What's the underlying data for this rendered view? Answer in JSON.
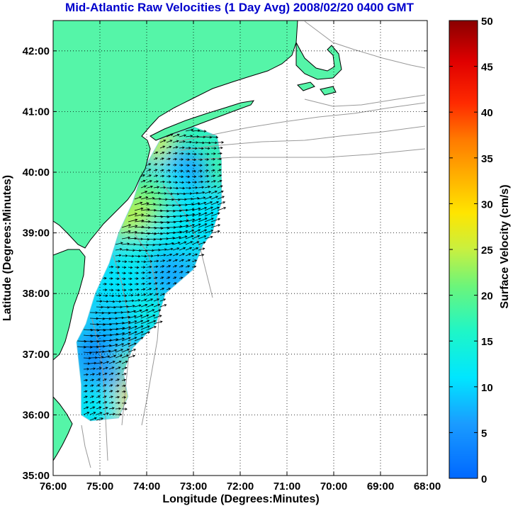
{
  "title": "Mid-Atlantic Raw Velocities (1 Day Avg) 2008/02/20 0400 GMT",
  "colors": {
    "title": "#0000cc",
    "land": "#55f5a8",
    "coast_line": "#000000",
    "bathymetry": "#999999",
    "grid": "#000000",
    "arrows": "#000000",
    "background": "#ffffff"
  },
  "map": {
    "xlabel": "Longitude (Degrees:Minutes)",
    "ylabel": "Latitude (Degrees:Minutes)",
    "lon_range": [
      -76,
      -68
    ],
    "lat_range": [
      35,
      42.5
    ],
    "x_ticks": [
      {
        "value": -76,
        "label": "76:00"
      },
      {
        "value": -75,
        "label": "75:00"
      },
      {
        "value": -74,
        "label": "74:00"
      },
      {
        "value": -73,
        "label": "73:00"
      },
      {
        "value": -72,
        "label": "72:00"
      },
      {
        "value": -71,
        "label": "71:00"
      },
      {
        "value": -70,
        "label": "70:00"
      },
      {
        "value": -69,
        "label": "69:00"
      },
      {
        "value": -68,
        "label": "68:00"
      }
    ],
    "y_ticks": [
      {
        "value": 35,
        "label": "35:00"
      },
      {
        "value": 36,
        "label": "36:00"
      },
      {
        "value": 37,
        "label": "37:00"
      },
      {
        "value": 38,
        "label": "38:00"
      },
      {
        "value": 39,
        "label": "39:00"
      },
      {
        "value": 40,
        "label": "40:00"
      },
      {
        "value": 41,
        "label": "41:00"
      },
      {
        "value": 42,
        "label": "42:00"
      }
    ],
    "grid": "dotted"
  },
  "colorbar": {
    "label": "Surface Velocity (cm/s)",
    "range": [
      0,
      50
    ],
    "ticks": [
      "0",
      "5",
      "10",
      "15",
      "20",
      "25",
      "30",
      "35",
      "40",
      "45",
      "50"
    ]
  },
  "chart_data": {
    "type": "heatmap",
    "title": "Mid-Atlantic Raw Velocities (1 Day Avg) 2008/02/20 0400 GMT",
    "xlabel": "Longitude (Degrees:Minutes)",
    "ylabel": "Latitude (Degrees:Minutes)",
    "xlim": [
      -76,
      -68
    ],
    "ylim": [
      35,
      42.5
    ],
    "value_label": "Surface Velocity (cm/s)",
    "value_range": [
      0,
      50
    ],
    "coverage_polygon_lon_lat": [
      [
        -73.7,
        40.55
      ],
      [
        -73.0,
        40.75
      ],
      [
        -72.5,
        40.6
      ],
      [
        -72.4,
        40.2
      ],
      [
        -72.4,
        39.5
      ],
      [
        -72.6,
        39.0
      ],
      [
        -72.8,
        38.8
      ],
      [
        -73.0,
        38.4
      ],
      [
        -73.6,
        38.0
      ],
      [
        -73.8,
        37.5
      ],
      [
        -74.3,
        37.1
      ],
      [
        -74.5,
        36.7
      ],
      [
        -74.4,
        36.3
      ],
      [
        -74.6,
        35.95
      ],
      [
        -75.2,
        35.9
      ],
      [
        -75.4,
        36.0
      ],
      [
        -75.4,
        36.5
      ],
      [
        -75.5,
        37.2
      ],
      [
        -75.3,
        37.5
      ],
      [
        -75.1,
        38.0
      ],
      [
        -74.8,
        38.5
      ],
      [
        -74.6,
        39.0
      ],
      [
        -74.3,
        39.5
      ],
      [
        -74.1,
        40.0
      ]
    ],
    "speed_samples": [
      {
        "lon": -73.6,
        "lat": 40.45,
        "speed": 25
      },
      {
        "lon": -73.0,
        "lat": 40.55,
        "speed": 17
      },
      {
        "lon": -72.6,
        "lat": 40.1,
        "speed": 18
      },
      {
        "lon": -73.2,
        "lat": 40.0,
        "speed": 6
      },
      {
        "lon": -73.6,
        "lat": 39.8,
        "speed": 10
      },
      {
        "lon": -74.0,
        "lat": 39.6,
        "speed": 20
      },
      {
        "lon": -74.3,
        "lat": 39.2,
        "speed": 24
      },
      {
        "lon": -73.0,
        "lat": 39.3,
        "speed": 12
      },
      {
        "lon": -72.6,
        "lat": 39.2,
        "speed": 11
      },
      {
        "lon": -73.5,
        "lat": 38.9,
        "speed": 12
      },
      {
        "lon": -74.2,
        "lat": 38.6,
        "speed": 13
      },
      {
        "lon": -73.5,
        "lat": 38.3,
        "speed": 7
      },
      {
        "lon": -74.6,
        "lat": 38.1,
        "speed": 11
      },
      {
        "lon": -74.0,
        "lat": 37.7,
        "speed": 13
      },
      {
        "lon": -74.8,
        "lat": 37.5,
        "speed": 9
      },
      {
        "lon": -75.0,
        "lat": 37.0,
        "speed": 4
      },
      {
        "lon": -74.3,
        "lat": 37.0,
        "speed": 9
      },
      {
        "lon": -74.4,
        "lat": 36.6,
        "speed": 22
      },
      {
        "lon": -74.9,
        "lat": 36.5,
        "speed": 6
      },
      {
        "lon": -74.5,
        "lat": 36.1,
        "speed": 30
      },
      {
        "lon": -75.0,
        "lat": 36.1,
        "speed": 12
      }
    ],
    "vector_direction": "predominantly eastward / north-eastward surface flow"
  }
}
